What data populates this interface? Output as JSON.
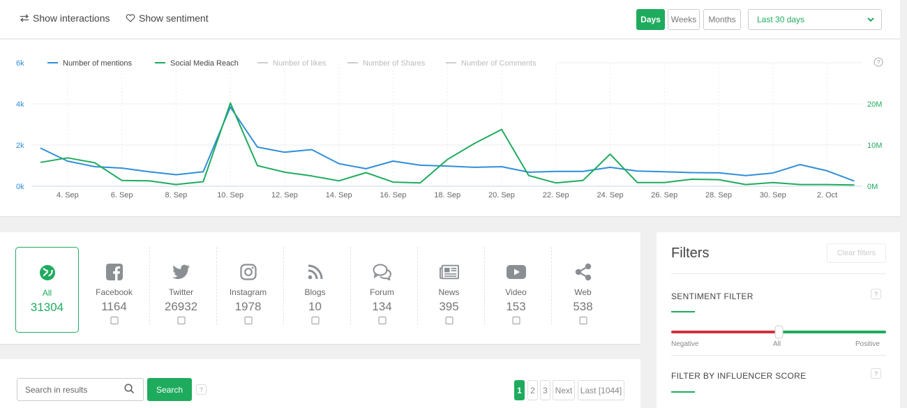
{
  "topbar": {
    "show_interactions": "Show interactions",
    "show_sentiment": "Show sentiment",
    "periods": [
      "Days",
      "Weeks",
      "Months"
    ],
    "active_period": "Days",
    "range": "Last 30 days"
  },
  "chart_data": {
    "type": "line",
    "x": [
      "3. Sep",
      "4. Sep",
      "5. Sep",
      "6. Sep",
      "7. Sep",
      "8. Sep",
      "9. Sep",
      "10. Sep",
      "11. Sep",
      "12. Sep",
      "13. Sep",
      "14. Sep",
      "15. Sep",
      "16. Sep",
      "17. Sep",
      "18. Sep",
      "19. Sep",
      "20. Sep",
      "21. Sep",
      "22. Sep",
      "23. Sep",
      "24. Sep",
      "25. Sep",
      "26. Sep",
      "27. Sep",
      "28. Sep",
      "29. Sep",
      "30. Sep",
      "1. Oct",
      "2. Oct",
      "3. Oct"
    ],
    "x_tick_labels": [
      "4. Sep",
      "6. Sep",
      "8. Sep",
      "10. Sep",
      "12. Sep",
      "14. Sep",
      "16. Sep",
      "18. Sep",
      "20. Sep",
      "22. Sep",
      "24. Sep",
      "26. Sep",
      "28. Sep",
      "30. Sep",
      "2. Oct"
    ],
    "y_left_ticks": [
      "0k",
      "2k",
      "4k",
      "6k"
    ],
    "y_right_ticks": [
      "0M",
      "10M",
      "20M"
    ],
    "ylim_left": [
      0,
      6000
    ],
    "ylim_right": [
      0,
      30000000
    ],
    "series": [
      {
        "name": "Number of mentions",
        "axis": "left",
        "color": "#2f8ed8",
        "values": [
          1850,
          1220,
          950,
          880,
          700,
          560,
          700,
          3850,
          1900,
          1650,
          1780,
          1100,
          850,
          1220,
          1020,
          980,
          920,
          950,
          680,
          720,
          720,
          920,
          740,
          700,
          660,
          650,
          520,
          640,
          1050,
          750,
          250
        ]
      },
      {
        "name": "Social Media Reach",
        "axis": "right",
        "color": "#1eab5d",
        "values": [
          5800000,
          6900000,
          5700000,
          1400000,
          1300000,
          400000,
          1100000,
          20200000,
          5000000,
          3400000,
          2500000,
          1300000,
          3300000,
          1000000,
          800000,
          6500000,
          10400000,
          13800000,
          2600000,
          800000,
          1400000,
          7800000,
          900000,
          900000,
          1700000,
          1600000,
          400000,
          900000,
          400000,
          400000,
          300000
        ]
      }
    ],
    "legend": [
      {
        "name": "Number of mentions",
        "color": "#2f8ed8",
        "active": true
      },
      {
        "name": "Social Media Reach",
        "color": "#1eab5d",
        "active": true
      },
      {
        "name": "Number of likes",
        "color": "#cccccc",
        "active": false
      },
      {
        "name": "Number of Shares",
        "color": "#cccccc",
        "active": false
      },
      {
        "name": "Number of Comments",
        "color": "#cccccc",
        "active": false
      }
    ],
    "legend_position": "top-left",
    "grid": "horizontal and vertical dashed",
    "help_symbol": "?"
  },
  "sources": [
    {
      "label": "All",
      "count": "31304",
      "icon": "globe-icon",
      "active": true
    },
    {
      "label": "Facebook",
      "count": "1164",
      "icon": "facebook-icon"
    },
    {
      "label": "Twitter",
      "count": "26932",
      "icon": "twitter-icon"
    },
    {
      "label": "Instagram",
      "count": "1978",
      "icon": "instagram-icon"
    },
    {
      "label": "Blogs",
      "count": "10",
      "icon": "rss-icon"
    },
    {
      "label": "Forum",
      "count": "134",
      "icon": "chat-icon"
    },
    {
      "label": "News",
      "count": "395",
      "icon": "newspaper-icon"
    },
    {
      "label": "Video",
      "count": "153",
      "icon": "play-icon"
    },
    {
      "label": "Web",
      "count": "538",
      "icon": "share-icon"
    }
  ],
  "search": {
    "placeholder": "Search in results",
    "button": "Search",
    "help": "?"
  },
  "pagination": [
    "1",
    "2",
    "3",
    "Next",
    "Last [1044]"
  ],
  "filters": {
    "title": "Filters",
    "clear": "Clear filters",
    "sentiment_title": "SENTIMENT FILTER",
    "sentiment_labels": [
      "Negative",
      "All",
      "Positive"
    ],
    "sentiment_value": "All",
    "influencer_title": "FILTER BY INFLUENCER SCORE",
    "help": "?"
  },
  "colors": {
    "accent": "#1eab5d",
    "mentions": "#2f8ed8",
    "negative": "#d0313f"
  }
}
